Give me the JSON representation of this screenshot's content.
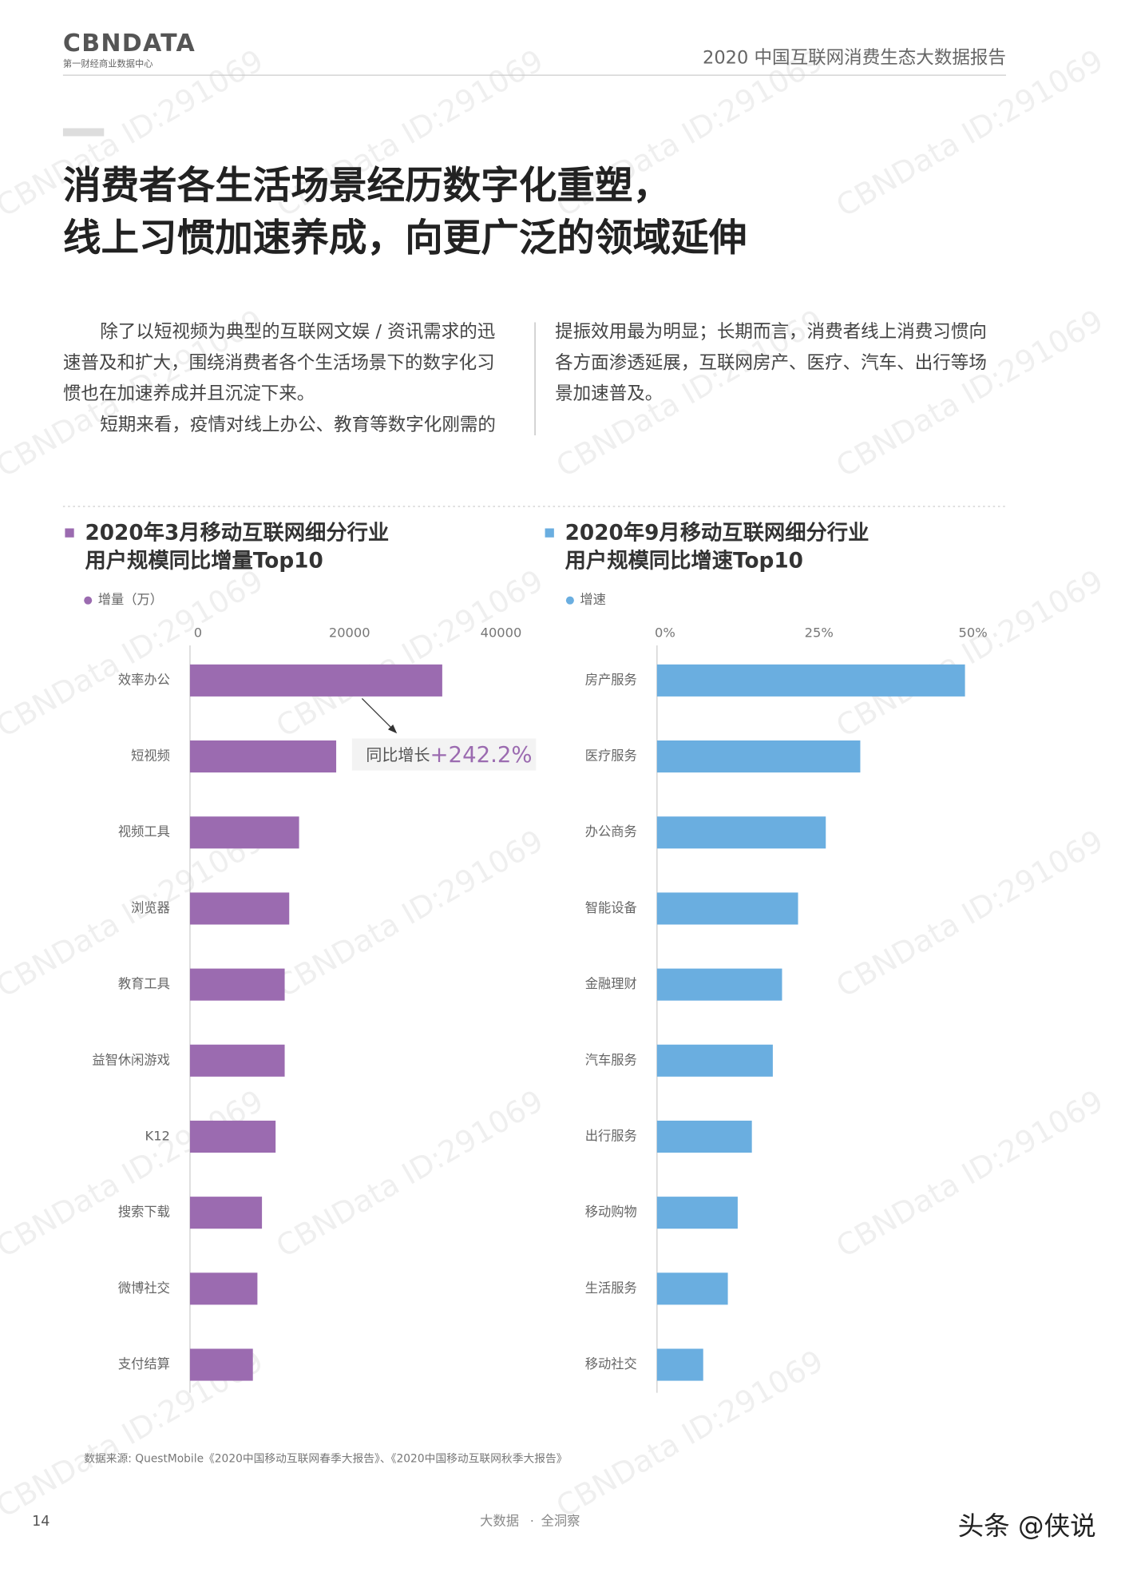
{
  "header": {
    "logo": "CBNDATA",
    "logo_sub": "第一财经商业数据中心",
    "report": "2020 中国互联网消费生态大数据报告"
  },
  "title": [
    "消费者各生活场景经历数字化重塑，",
    "线上习惯加速养成，向更广泛的领域延伸"
  ],
  "paragraphs": {
    "left": [
      "除了以短视频为典型的互联网文娱 / 资讯需求的迅",
      "速普及和扩大，围绕消费者各个生活场景下的数字化习",
      "惯也在加速养成并且沉淀下来。",
      "短期来看，疫情对线上办公、教育等数字化刚需的"
    ],
    "right": [
      "提振效用最为明显；长期而言，消费者线上消费习惯向",
      "各方面渗透延展，互联网房产、医疗、汽车、出行等场",
      "景加速普及。"
    ]
  },
  "chart_data": [
    {
      "type": "hbar",
      "title": [
        "2020年3月移动互联网细分行业",
        "用户规模同比增量Top10"
      ],
      "categories": [
        "效率办公",
        "短视频",
        "视频工具",
        "浏览器",
        "教育工具",
        "益智休闲游戏",
        "K12",
        "搜索下载",
        "微博社交",
        "支付结算"
      ],
      "series": [
        {
          "name": "增量（万）",
          "color": "#9b6bb0",
          "values": [
            33300,
            19300,
            14400,
            13100,
            12500,
            12500,
            11300,
            9500,
            8900,
            8300
          ]
        }
      ],
      "xlim": [
        0,
        40000
      ],
      "xticks": [
        0,
        20000,
        40000
      ],
      "annotation": {
        "text": "同比增长",
        "value": "+242.2%"
      }
    },
    {
      "type": "hbar",
      "title": [
        "2020年9月移动互联网细分行业",
        "用户规模同比增速Top10"
      ],
      "categories": [
        "房产服务",
        "医疗服务",
        "办公商务",
        "智能设备",
        "金融理财",
        "汽车服务",
        "出行服务",
        "移动购物",
        "生活服务",
        "移动社交"
      ],
      "series": [
        {
          "name": "增速",
          "color": "#6aaee0",
          "values": [
            50,
            33,
            27.4,
            22.9,
            20.3,
            18.8,
            15.4,
            13.1,
            11.5,
            7.5
          ]
        }
      ],
      "xlim": [
        0,
        50
      ],
      "xticks": [
        {
          "value": 0,
          "label": "0%"
        },
        {
          "value": 25,
          "label": "25%"
        },
        {
          "value": 50,
          "label": "50%"
        }
      ]
    }
  ],
  "source": "数据来源: QuestMobile《2020中国移动互联网春季大报告》、《2020中国移动互联网秋季大报告》",
  "footer": {
    "page": "14",
    "left": "大数据",
    "sep": "·",
    "right": "全洞察"
  },
  "watermark": "CBNData ID:291069",
  "credit": "头条 @侠说"
}
